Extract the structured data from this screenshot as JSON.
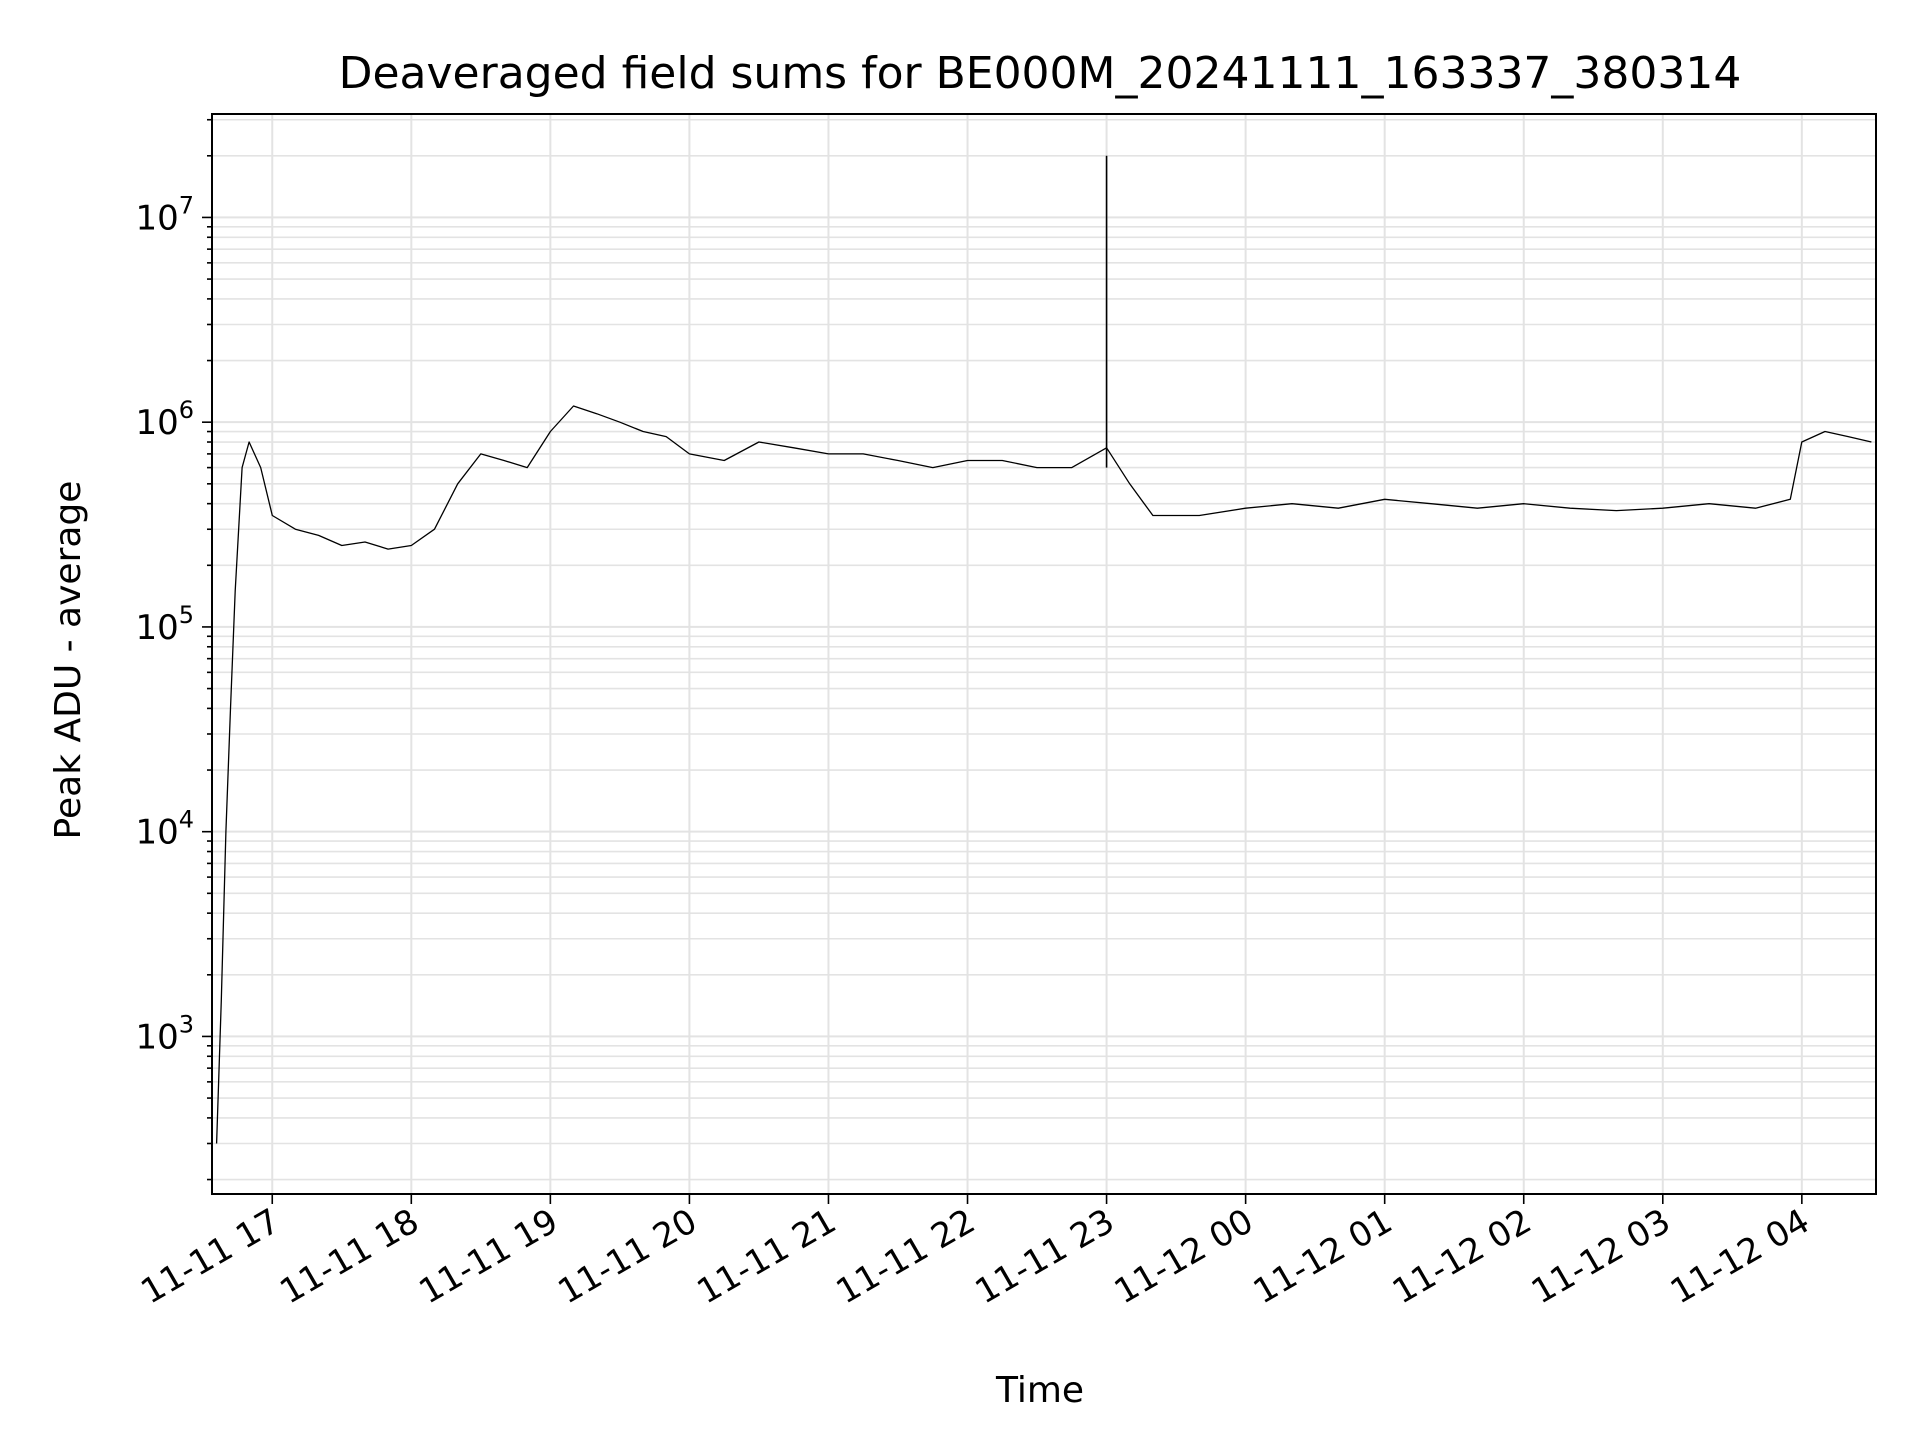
{
  "chart_data": {
    "type": "line",
    "title": "Deaveraged field sums for BE000M_20241111_163337_380314",
    "xlabel": "Time",
    "ylabel": "Peak ADU - average",
    "yscale": "log",
    "ylim": [
      170,
      32000000
    ],
    "xlim": [
      "2024-11-11 16:34",
      "2024-11-12 04:32"
    ],
    "grid": true,
    "line_color": "#000000",
    "x_ticks": [
      {
        "t": "2024-11-11 17:00",
        "label": "11-11 17"
      },
      {
        "t": "2024-11-11 18:00",
        "label": "11-11 18"
      },
      {
        "t": "2024-11-11 19:00",
        "label": "11-11 19"
      },
      {
        "t": "2024-11-11 20:00",
        "label": "11-11 20"
      },
      {
        "t": "2024-11-11 21:00",
        "label": "11-11 21"
      },
      {
        "t": "2024-11-11 22:00",
        "label": "11-11 22"
      },
      {
        "t": "2024-11-11 23:00",
        "label": "11-11 23"
      },
      {
        "t": "2024-11-12 00:00",
        "label": "11-12 00"
      },
      {
        "t": "2024-11-12 01:00",
        "label": "11-12 01"
      },
      {
        "t": "2024-11-12 02:00",
        "label": "11-12 02"
      },
      {
        "t": "2024-11-12 03:00",
        "label": "11-12 03"
      },
      {
        "t": "2024-11-12 04:00",
        "label": "11-12 04"
      }
    ],
    "y_ticks": [
      {
        "value": 1000,
        "base": "10",
        "exp": "3"
      },
      {
        "value": 10000,
        "base": "10",
        "exp": "4"
      },
      {
        "value": 100000,
        "base": "10",
        "exp": "5"
      },
      {
        "value": 1000000,
        "base": "10",
        "exp": "6"
      },
      {
        "value": 10000000,
        "base": "10",
        "exp": "7"
      }
    ],
    "series": [
      {
        "x": [
          "2024-11-11 16:36",
          "2024-11-11 16:38",
          "2024-11-11 16:40",
          "2024-11-11 16:42",
          "2024-11-11 16:44",
          "2024-11-11 16:47",
          "2024-11-11 16:50",
          "2024-11-11 16:55",
          "2024-11-11 17:00",
          "2024-11-11 17:10",
          "2024-11-11 17:20",
          "2024-11-11 17:30",
          "2024-11-11 17:40",
          "2024-11-11 17:50",
          "2024-11-11 18:00",
          "2024-11-11 18:10",
          "2024-11-11 18:20",
          "2024-11-11 18:30",
          "2024-11-11 18:40",
          "2024-11-11 18:50",
          "2024-11-11 19:00",
          "2024-11-11 19:10",
          "2024-11-11 19:20",
          "2024-11-11 19:30",
          "2024-11-11 19:40",
          "2024-11-11 19:50",
          "2024-11-11 20:00",
          "2024-11-11 20:15",
          "2024-11-11 20:30",
          "2024-11-11 20:45",
          "2024-11-11 21:00",
          "2024-11-11 21:15",
          "2024-11-11 21:30",
          "2024-11-11 21:45",
          "2024-11-11 22:00",
          "2024-11-11 22:15",
          "2024-11-11 22:30",
          "2024-11-11 22:45",
          "2024-11-11 23:00",
          "2024-11-11 23:10",
          "2024-11-11 23:20",
          "2024-11-11 23:40",
          "2024-11-12 00:00",
          "2024-11-12 00:20",
          "2024-11-12 00:40",
          "2024-11-12 01:00",
          "2024-11-12 01:20",
          "2024-11-12 01:40",
          "2024-11-12 02:00",
          "2024-11-12 02:20",
          "2024-11-12 02:40",
          "2024-11-12 03:00",
          "2024-11-12 03:20",
          "2024-11-12 03:40",
          "2024-11-12 03:55",
          "2024-11-12 04:00",
          "2024-11-12 04:10",
          "2024-11-12 04:20",
          "2024-11-12 04:30"
        ],
        "y": [
          300,
          1500,
          10000,
          40000,
          150000,
          600000,
          800000,
          600000,
          350000,
          300000,
          280000,
          250000,
          260000,
          240000,
          250000,
          300000,
          500000,
          700000,
          650000,
          600000,
          900000,
          1200000,
          1100000,
          1000000,
          900000,
          850000,
          700000,
          650000,
          800000,
          750000,
          700000,
          700000,
          650000,
          600000,
          650000,
          650000,
          600000,
          600000,
          750000,
          500000,
          350000,
          350000,
          380000,
          400000,
          380000,
          420000,
          400000,
          380000,
          400000,
          380000,
          370000,
          380000,
          400000,
          380000,
          420000,
          800000,
          900000,
          850000,
          800000
        ]
      }
    ],
    "annotations": [
      {
        "x": "2024-11-11 23:00",
        "y": 20000000,
        "note_type": "spike"
      }
    ]
  }
}
